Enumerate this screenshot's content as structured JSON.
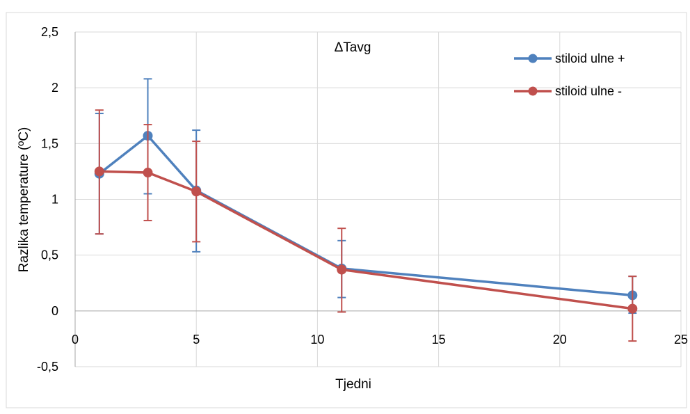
{
  "chart_data": {
    "type": "scatter",
    "title": "ΔTavg",
    "xlabel": "Tjedni",
    "ylabel": "Razlika temperature (ºC)",
    "xlim": [
      0,
      25
    ],
    "ylim": [
      -0.5,
      2.5
    ],
    "x_ticks": [
      0,
      5,
      10,
      15,
      20,
      25
    ],
    "x_tick_labels": [
      "0",
      "5",
      "10",
      "15",
      "20",
      "25"
    ],
    "y_ticks": [
      -0.5,
      0,
      0.5,
      1,
      1.5,
      2,
      2.5
    ],
    "y_tick_labels": [
      "-0,5",
      "0",
      "0,5",
      "1",
      "1,5",
      "2",
      "2,5"
    ],
    "grid": true,
    "legend_position": "top-right",
    "series": [
      {
        "name": "stiloid ulne +",
        "color": "#4F81BD",
        "x": [
          1,
          3,
          5,
          11,
          23
        ],
        "y": [
          1.23,
          1.57,
          1.08,
          0.38,
          0.14
        ],
        "err_low": [
          0.69,
          1.05,
          0.53,
          0.12,
          -0.02
        ],
        "err_high": [
          1.77,
          2.08,
          1.62,
          0.63,
          0.31
        ]
      },
      {
        "name": "stiloid ulne -",
        "color": "#C0504D",
        "x": [
          1,
          3,
          5,
          11,
          23
        ],
        "y": [
          1.25,
          1.24,
          1.07,
          0.37,
          0.02
        ],
        "err_low": [
          0.69,
          0.81,
          0.62,
          -0.01,
          -0.27
        ],
        "err_high": [
          1.8,
          1.67,
          1.52,
          0.74,
          0.31
        ]
      }
    ]
  }
}
